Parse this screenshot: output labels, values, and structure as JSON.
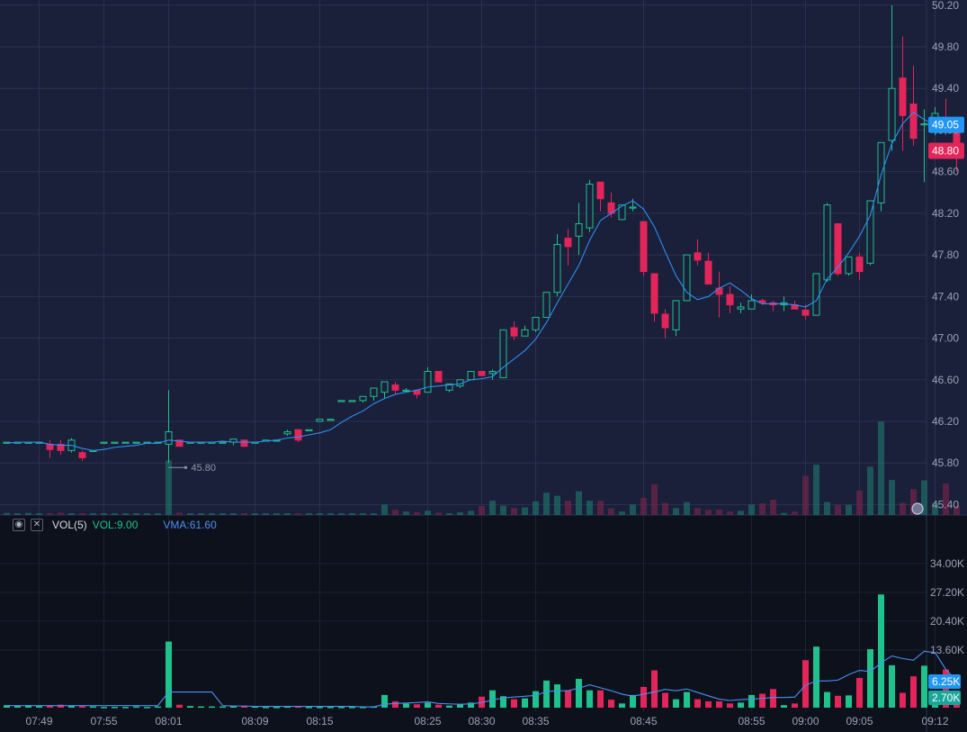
{
  "colors": {
    "background": "#1a1f3a",
    "volume_background": "#0d111c",
    "grid": "#2a3050",
    "up": "#1fc28c",
    "down": "#e3255a",
    "ma_line": "#2f8fef",
    "vma_line": "#4c8ff0",
    "axis_text": "#9aa1b4",
    "last_price_tag": "#2196f3",
    "current_price_tag": "#e3255a"
  },
  "volume_panel": {
    "indicator": "VOL(5)",
    "vol_label": "VOL:9.00",
    "vma_label": "VMA:61.60",
    "settings_icon": "eye-icon",
    "close_icon": "close-icon"
  },
  "chart_data": [
    {
      "type": "candlestick",
      "title": "",
      "ylim": [
        45.3,
        50.25
      ],
      "y_ticks": [
        "50.20",
        "49.80",
        "49.40",
        "49.00",
        "48.60",
        "48.20",
        "47.80",
        "47.40",
        "47.00",
        "46.60",
        "46.20",
        "45.80",
        "45.40"
      ],
      "x_ticks": [
        {
          "label": "07:49",
          "index": 3
        },
        {
          "label": "07:55",
          "index": 9
        },
        {
          "label": "08:01",
          "index": 15
        },
        {
          "label": "08:09",
          "index": 23
        },
        {
          "label": "08:15",
          "index": 29
        },
        {
          "label": "08:25",
          "index": 39
        },
        {
          "label": "08:30",
          "index": 44
        },
        {
          "label": "08:35",
          "index": 49
        },
        {
          "label": "08:45",
          "index": 59
        },
        {
          "label": "08:55",
          "index": 69
        },
        {
          "label": "09:00",
          "index": 74
        },
        {
          "label": "09:05",
          "index": 79
        },
        {
          "label": "09:12",
          "index": 86
        }
      ],
      "min_price_label": "45.80",
      "min_price_index": 15,
      "last_price_tag": "49.05",
      "current_price_tag": "48.80",
      "candles": [
        [
          46.0,
          46.0,
          46.0,
          46.0
        ],
        [
          46.0,
          46.0,
          46.0,
          46.0
        ],
        [
          46.0,
          46.0,
          46.0,
          46.0
        ],
        [
          46.0,
          46.0,
          46.0,
          46.0
        ],
        [
          45.98,
          46.02,
          45.85,
          45.93
        ],
        [
          45.98,
          46.02,
          45.88,
          45.92
        ],
        [
          45.92,
          46.04,
          45.9,
          46.02
        ],
        [
          45.9,
          45.92,
          45.82,
          45.85
        ],
        [
          45.92,
          45.92,
          45.92,
          45.92
        ],
        [
          46.0,
          46.0,
          46.0,
          46.0
        ],
        [
          46.0,
          46.0,
          46.0,
          46.0
        ],
        [
          46.0,
          46.0,
          46.0,
          46.0
        ],
        [
          46.0,
          46.0,
          46.0,
          46.0
        ],
        [
          46.0,
          46.0,
          46.0,
          46.0
        ],
        [
          46.0,
          46.0,
          46.0,
          46.0
        ],
        [
          45.98,
          46.5,
          45.8,
          46.1
        ],
        [
          46.02,
          46.02,
          45.96,
          45.96
        ],
        [
          46.0,
          46.0,
          46.0,
          46.0
        ],
        [
          46.0,
          46.0,
          46.0,
          46.0
        ],
        [
          46.0,
          46.0,
          46.0,
          46.0
        ],
        [
          46.0,
          46.0,
          46.0,
          46.0
        ],
        [
          46.0,
          46.03,
          45.97,
          46.03
        ],
        [
          46.02,
          46.02,
          45.96,
          45.96
        ],
        [
          46.0,
          46.0,
          46.0,
          46.0
        ],
        [
          46.02,
          46.02,
          46.02,
          46.02
        ],
        [
          46.02,
          46.02,
          46.02,
          46.02
        ],
        [
          46.08,
          46.12,
          46.06,
          46.1
        ],
        [
          46.12,
          46.12,
          46.0,
          46.02
        ],
        [
          46.12,
          46.12,
          46.12,
          46.12
        ],
        [
          46.2,
          46.22,
          46.2,
          46.22
        ],
        [
          46.22,
          46.22,
          46.22,
          46.22
        ],
        [
          46.4,
          46.4,
          46.4,
          46.4
        ],
        [
          46.4,
          46.4,
          46.4,
          46.4
        ],
        [
          46.4,
          46.44,
          46.38,
          46.44
        ],
        [
          46.44,
          46.52,
          46.4,
          46.52
        ],
        [
          46.48,
          46.58,
          46.42,
          46.58
        ],
        [
          46.55,
          46.58,
          46.46,
          46.5
        ],
        [
          46.5,
          46.52,
          46.48,
          46.5
        ],
        [
          46.5,
          46.5,
          46.42,
          46.46
        ],
        [
          46.48,
          46.72,
          46.48,
          46.68
        ],
        [
          46.68,
          46.68,
          46.58,
          46.58
        ],
        [
          46.5,
          46.56,
          46.48,
          46.56
        ],
        [
          46.54,
          46.6,
          46.52,
          46.6
        ],
        [
          46.6,
          46.68,
          46.6,
          46.68
        ],
        [
          46.68,
          46.68,
          46.64,
          46.64
        ],
        [
          46.66,
          46.7,
          46.6,
          46.68
        ],
        [
          46.62,
          47.08,
          46.62,
          47.08
        ],
        [
          47.1,
          47.16,
          46.98,
          47.02
        ],
        [
          47.02,
          47.12,
          47.02,
          47.08
        ],
        [
          47.08,
          47.2,
          47.06,
          47.2
        ],
        [
          47.2,
          47.42,
          47.2,
          47.44
        ],
        [
          47.44,
          48.0,
          47.4,
          47.9
        ],
        [
          47.96,
          48.05,
          47.7,
          47.88
        ],
        [
          47.98,
          48.3,
          47.8,
          48.1
        ],
        [
          48.06,
          48.52,
          48.02,
          48.48
        ],
        [
          48.5,
          48.5,
          48.22,
          48.34
        ],
        [
          48.3,
          48.4,
          48.16,
          48.2
        ],
        [
          48.14,
          48.28,
          48.14,
          48.28
        ],
        [
          48.26,
          48.34,
          48.22,
          48.26
        ],
        [
          48.12,
          48.12,
          47.6,
          47.64
        ],
        [
          47.62,
          47.62,
          47.16,
          47.24
        ],
        [
          47.23,
          47.28,
          47.0,
          47.1
        ],
        [
          47.08,
          47.36,
          47.02,
          47.36
        ],
        [
          47.36,
          47.8,
          47.36,
          47.8
        ],
        [
          47.82,
          47.95,
          47.7,
          47.75
        ],
        [
          47.74,
          47.82,
          47.52,
          47.52
        ],
        [
          47.48,
          47.64,
          47.2,
          47.42
        ],
        [
          47.42,
          47.5,
          47.24,
          47.32
        ],
        [
          47.28,
          47.34,
          47.24,
          47.3
        ],
        [
          47.28,
          47.42,
          47.28,
          47.36
        ],
        [
          47.36,
          47.38,
          47.32,
          47.34
        ],
        [
          47.34,
          47.36,
          47.26,
          47.32
        ],
        [
          47.32,
          47.4,
          47.26,
          47.34
        ],
        [
          47.32,
          47.36,
          47.28,
          47.28
        ],
        [
          47.27,
          47.32,
          47.18,
          47.22
        ],
        [
          47.22,
          47.62,
          47.22,
          47.62
        ],
        [
          47.56,
          48.3,
          47.54,
          48.28
        ],
        [
          48.1,
          48.1,
          47.6,
          47.62
        ],
        [
          47.62,
          47.78,
          47.6,
          47.78
        ],
        [
          47.78,
          47.82,
          47.56,
          47.64
        ],
        [
          47.72,
          48.32,
          47.7,
          48.32
        ],
        [
          48.3,
          48.85,
          48.22,
          48.88
        ],
        [
          48.9,
          50.2,
          48.8,
          49.4
        ],
        [
          49.5,
          49.9,
          48.8,
          49.14
        ],
        [
          49.25,
          49.62,
          48.85,
          48.92
        ],
        [
          49.06,
          49.2,
          48.5,
          49.06
        ],
        [
          49.06,
          49.22,
          48.95,
          49.16
        ],
        [
          49.06,
          49.3,
          48.95,
          49.05
        ],
        [
          49.1,
          49.1,
          48.6,
          48.8
        ]
      ],
      "ma": [
        45.99,
        46.0,
        46.0,
        46.0,
        45.98,
        45.97,
        45.97,
        45.94,
        45.92,
        45.93,
        45.95,
        45.96,
        45.97,
        45.99,
        45.99,
        46.02,
        46.01,
        46.0,
        46.0,
        46.0,
        46.01,
        46.0,
        46.0,
        46.0,
        46.01,
        46.02,
        46.04,
        46.05,
        46.07,
        46.09,
        46.12,
        46.19,
        46.25,
        46.3,
        46.37,
        46.42,
        46.46,
        46.48,
        46.5,
        46.53,
        46.54,
        46.55,
        46.56,
        46.6,
        46.61,
        46.63,
        46.72,
        46.8,
        46.88,
        46.99,
        47.15,
        47.34,
        47.52,
        47.7,
        47.94,
        48.13,
        48.2,
        48.27,
        48.32,
        48.24,
        48.07,
        47.83,
        47.6,
        47.44,
        47.37,
        47.4,
        47.48,
        47.53,
        47.46,
        47.38,
        47.33,
        47.33,
        47.33,
        47.32,
        47.3,
        47.36,
        47.57,
        47.68,
        47.82,
        47.98,
        48.18,
        48.57,
        48.87,
        49.06,
        49.17,
        49.1,
        49.05,
        49.02,
        48.98
      ]
    },
    {
      "type": "bar",
      "title": "",
      "ylim": [
        0,
        38000
      ],
      "y_ticks": [
        "34.00K",
        "27.20K",
        "20.40K",
        "13.60K"
      ],
      "last_volume_tag": "6.25K",
      "vma_tag": "2.70K",
      "volume": [
        600,
        500,
        600,
        400,
        500,
        700,
        500,
        400,
        300,
        200,
        200,
        200,
        300,
        200,
        300,
        15600,
        700,
        400,
        300,
        300,
        300,
        400,
        400,
        300,
        200,
        200,
        300,
        300,
        200,
        200,
        200,
        200,
        200,
        200,
        300,
        3000,
        1500,
        1000,
        800,
        1200,
        700,
        500,
        800,
        1200,
        2600,
        4100,
        2700,
        2000,
        2200,
        3900,
        6400,
        5500,
        4100,
        6800,
        4100,
        4100,
        1900,
        1000,
        3000,
        4900,
        8800,
        3500,
        2000,
        3700,
        2000,
        1500,
        1500,
        1000,
        1200,
        3000,
        3300,
        4400,
        600,
        1000,
        11200,
        14400,
        3700,
        2800,
        2900,
        7000,
        13800,
        26700,
        10000,
        3500,
        7400,
        9900,
        3400,
        9000,
        2700
      ],
      "vma": [
        500,
        500,
        500,
        500,
        500,
        500,
        500,
        500,
        500,
        500,
        500,
        500,
        500,
        500,
        500,
        3700,
        3700,
        3700,
        3700,
        3700,
        500,
        400,
        400,
        300,
        300,
        300,
        300,
        300,
        300,
        300,
        300,
        300,
        300,
        200,
        200,
        800,
        1000,
        1100,
        1200,
        1400,
        1000,
        900,
        800,
        900,
        1200,
        1800,
        2300,
        2500,
        2700,
        2900,
        3800,
        4000,
        4000,
        4600,
        5400,
        4700,
        4000,
        3200,
        2700,
        3200,
        3700,
        4300,
        4000,
        4400,
        3600,
        2800,
        2000,
        1700,
        1900,
        2000,
        2200,
        2400,
        2400,
        2500,
        5300,
        6300,
        6300,
        6500,
        7800,
        8800,
        8500,
        10600,
        12200,
        11600,
        11200,
        13300,
        13000,
        9000,
        6400
      ]
    }
  ]
}
